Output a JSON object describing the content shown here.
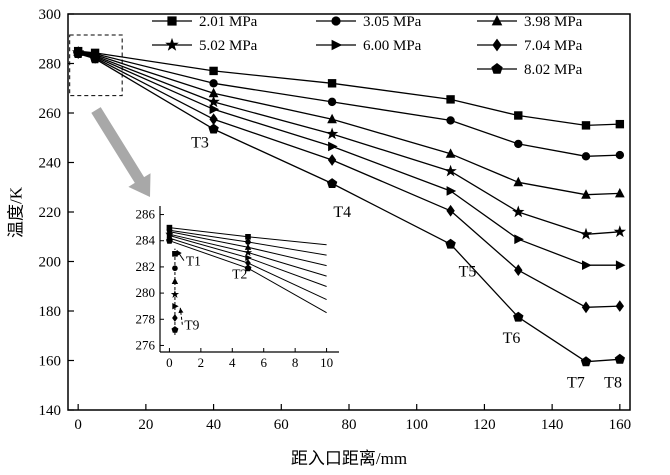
{
  "figure": {
    "background": "#ffffff",
    "line_color": "#000000",
    "zoom_arrow_color": "#a8a8a8"
  },
  "chart_data": {
    "type": "line",
    "title": "",
    "xlabel": "距入口距离/mm",
    "ylabel": "温度/K",
    "xlim": [
      -3,
      163
    ],
    "ylim": [
      140,
      300
    ],
    "xticks": [
      0,
      20,
      40,
      60,
      80,
      100,
      120,
      140,
      160
    ],
    "yticks": [
      140,
      160,
      180,
      200,
      220,
      240,
      260,
      280,
      300
    ],
    "grid": false,
    "legend_position": "top-inside",
    "legend_columns": 3,
    "x": [
      0,
      5,
      40,
      75,
      110,
      130,
      150,
      160
    ],
    "series": [
      {
        "name": "2.01 MPa",
        "marker": "square",
        "values": [
          285.0,
          284.3,
          277.0,
          272.0,
          265.5,
          259.0,
          255.0,
          255.5
        ]
      },
      {
        "name": "3.05 MPa",
        "marker": "circle",
        "values": [
          284.8,
          283.9,
          272.0,
          264.5,
          257.0,
          247.5,
          242.5,
          243.0
        ]
      },
      {
        "name": "3.98 MPa",
        "marker": "triangle-up",
        "values": [
          284.7,
          283.5,
          268.0,
          257.5,
          243.5,
          232.0,
          227.0,
          227.5
        ]
      },
      {
        "name": "5.02 MPa",
        "marker": "star",
        "values": [
          284.5,
          283.1,
          264.5,
          251.5,
          236.5,
          220.0,
          211.0,
          212.0
        ]
      },
      {
        "name": "6.00 MPa",
        "marker": "triangle-right",
        "values": [
          284.4,
          282.7,
          261.5,
          246.5,
          228.5,
          209.0,
          198.5,
          198.5
        ]
      },
      {
        "name": "7.04 MPa",
        "marker": "diamond",
        "values": [
          284.2,
          282.3,
          257.5,
          241.0,
          220.5,
          196.5,
          181.5,
          182.0
        ]
      },
      {
        "name": "8.02 MPa",
        "marker": "pentagon",
        "values": [
          284.0,
          281.9,
          253.5,
          231.5,
          207.0,
          177.5,
          159.5,
          160.5
        ]
      }
    ],
    "annotations": [
      {
        "text": "T3",
        "x": 36,
        "y": 246
      },
      {
        "text": "T4",
        "x": 78,
        "y": 218
      },
      {
        "text": "T5",
        "x": 115,
        "y": 194
      },
      {
        "text": "T6",
        "x": 128,
        "y": 167
      },
      {
        "text": "T7",
        "x": 147,
        "y": 149
      },
      {
        "text": "T8",
        "x": 158,
        "y": 149
      }
    ],
    "zoom_box": {
      "x1": -2.5,
      "y1": 267,
      "x2": 13,
      "y2": 291.5
    },
    "inset": {
      "xlim": [
        -0.6,
        10.6
      ],
      "ylim": [
        275.5,
        286.5
      ],
      "xticks": [
        0,
        2,
        4,
        6,
        8,
        10
      ],
      "yticks": [
        276,
        278,
        280,
        282,
        284,
        286
      ],
      "x": [
        0,
        5,
        10
      ],
      "series": [
        {
          "marker": "square",
          "values": [
            285.0,
            284.3,
            283.7
          ]
        },
        {
          "marker": "circle",
          "values": [
            284.8,
            283.9,
            282.9
          ]
        },
        {
          "marker": "triangle-up",
          "values": [
            284.7,
            283.5,
            282.1
          ]
        },
        {
          "marker": "star",
          "values": [
            284.5,
            283.1,
            281.3
          ]
        },
        {
          "marker": "triangle-right",
          "values": [
            284.4,
            282.7,
            280.5
          ]
        },
        {
          "marker": "diamond",
          "values": [
            284.2,
            282.3,
            279.5
          ]
        },
        {
          "marker": "pentagon",
          "values": [
            284.0,
            281.9,
            278.5
          ]
        }
      ],
      "extra_points": [
        {
          "marker": "square",
          "x": 0.35,
          "y": 283.0
        },
        {
          "marker": "circle",
          "x": 0.35,
          "y": 281.9
        },
        {
          "marker": "triangle-up",
          "x": 0.35,
          "y": 280.9
        },
        {
          "marker": "star",
          "x": 0.35,
          "y": 279.9
        },
        {
          "marker": "triangle-right",
          "x": 0.35,
          "y": 279.0
        },
        {
          "marker": "diamond",
          "x": 0.35,
          "y": 278.1
        },
        {
          "marker": "pentagon",
          "x": 0.35,
          "y": 277.2
        }
      ],
      "dashed_line": {
        "x": 0.35,
        "y1": 276.8,
        "y2": 283.4
      },
      "annotations": [
        {
          "text": "T1",
          "x": 1.05,
          "y": 282.1,
          "arrow_to": {
            "x": 0.28,
            "y": 283.5
          },
          "dashed": false
        },
        {
          "text": "T2",
          "x": 4.0,
          "y": 281.1
        },
        {
          "text": "T9",
          "x": 0.95,
          "y": 277.2,
          "arrow_to": {
            "x": 0.5,
            "y": 279.1
          },
          "dashed": true
        }
      ]
    }
  }
}
